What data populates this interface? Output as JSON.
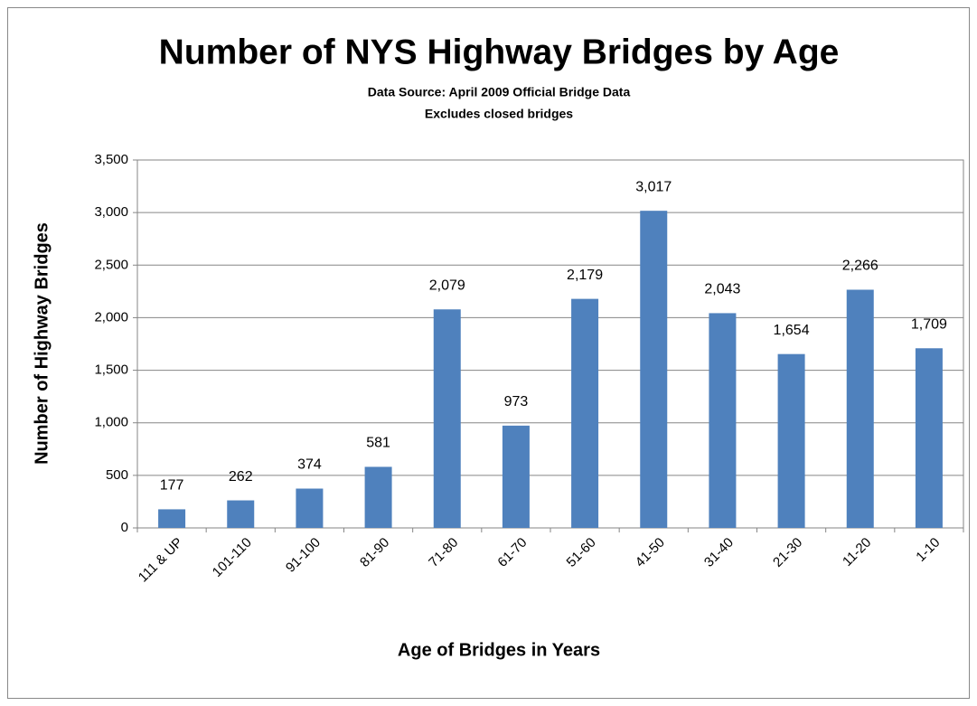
{
  "chart_data": {
    "type": "bar",
    "title": "Number of NYS Highway Bridges by Age",
    "subtitle": [
      "Data Source: April 2009 Official Bridge Data",
      "Excludes closed bridges"
    ],
    "x_label": "Age of Bridges in Years",
    "y_label": "Number of Highway Bridges",
    "categories": [
      "111 & UP",
      "101-110",
      "91-100",
      "81-90",
      "71-80",
      "61-70",
      "51-60",
      "41-50",
      "31-40",
      "21-30",
      "11-20",
      "1-10"
    ],
    "values": [
      177,
      262,
      374,
      581,
      2079,
      973,
      2179,
      3017,
      2043,
      1654,
      2266,
      1709
    ],
    "value_labels": [
      "177",
      "262",
      "374",
      "581",
      "2,079",
      "973",
      "2,179",
      "3,017",
      "2,043",
      "1,654",
      "2,266",
      "1,709"
    ],
    "color": "#4f81bd",
    "ylim": [
      0,
      3500
    ],
    "yticks": [
      0,
      500,
      {
        "value": 1000,
        "label": "1,000"
      },
      {
        "value": 1500,
        "label": "1,500"
      },
      {
        "value": 2000,
        "label": "2,000"
      },
      {
        "value": 2500,
        "label": "2,500"
      },
      {
        "value": 3000,
        "label": "3,000"
      },
      {
        "value": 3500,
        "label": "3,500"
      }
    ],
    "grid": true
  }
}
